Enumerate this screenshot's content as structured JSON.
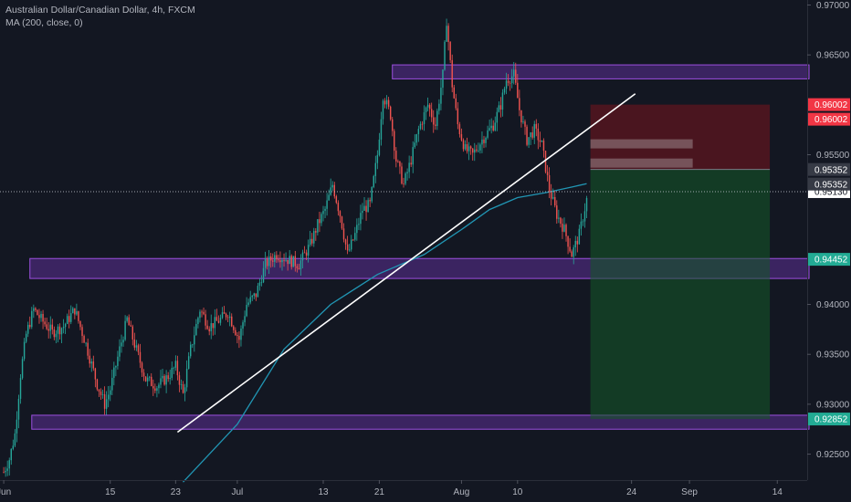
{
  "legend": {
    "title": "Australian Dollar/Canadian Dollar, 4h, FXCM",
    "indicator": "MA (200, close, 0)"
  },
  "colors": {
    "background": "#131722",
    "up_candle": "#26a69a",
    "down_candle": "#ef5350",
    "ma_line": "#2196b4",
    "zone_fill": "rgba(126, 58, 200, 0.38)",
    "zone_border": "#9c4fe0",
    "trendline": "#ffffff",
    "stop_zone": "rgba(120, 20, 30, 0.55)",
    "target_zone": "rgba(20, 90, 40, 0.55)",
    "axis_text": "#b2b5be",
    "price_red": "#f23645",
    "price_green": "#22ab94"
  },
  "chart_data": {
    "type": "candlestick",
    "symbol": "AUDCAD",
    "timeframe": "4h",
    "source": "FXCM",
    "ylim": [
      0.9224,
      0.9705
    ],
    "x_ticks": [
      {
        "label": "Jun",
        "idx": 0
      },
      {
        "label": "15",
        "idx": 57
      },
      {
        "label": "23",
        "idx": 92
      },
      {
        "label": "Jul",
        "idx": 125
      },
      {
        "label": "13",
        "idx": 171
      },
      {
        "label": "21",
        "idx": 201
      },
      {
        "label": "Aug",
        "idx": 245
      },
      {
        "label": "10",
        "idx": 275
      },
      {
        "label": "24",
        "idx": 336
      },
      {
        "label": "Sep",
        "idx": 367
      },
      {
        "label": "14",
        "idx": 414
      }
    ],
    "x_range": [
      -2,
      430
    ],
    "y_ticks": [
      "0.97000",
      "0.96500",
      "0.95500",
      "0.94000",
      "0.93500",
      "0.93000",
      "0.92500"
    ],
    "waypoints": [
      [
        0,
        0.9232
      ],
      [
        3,
        0.9245
      ],
      [
        6,
        0.927
      ],
      [
        9,
        0.933
      ],
      [
        12,
        0.937
      ],
      [
        16,
        0.9395
      ],
      [
        20,
        0.9385
      ],
      [
        26,
        0.9372
      ],
      [
        32,
        0.9378
      ],
      [
        38,
        0.9395
      ],
      [
        44,
        0.936
      ],
      [
        50,
        0.932
      ],
      [
        54,
        0.93
      ],
      [
        57,
        0.9315
      ],
      [
        62,
        0.9355
      ],
      [
        66,
        0.9385
      ],
      [
        70,
        0.936
      ],
      [
        76,
        0.9325
      ],
      [
        82,
        0.9318
      ],
      [
        88,
        0.9328
      ],
      [
        92,
        0.9338
      ],
      [
        96,
        0.931
      ],
      [
        100,
        0.9355
      ],
      [
        105,
        0.9395
      ],
      [
        110,
        0.9378
      ],
      [
        116,
        0.9385
      ],
      [
        120,
        0.9392
      ],
      [
        126,
        0.9365
      ],
      [
        130,
        0.94
      ],
      [
        135,
        0.941
      ],
      [
        140,
        0.944
      ],
      [
        146,
        0.945
      ],
      [
        152,
        0.9445
      ],
      [
        158,
        0.944
      ],
      [
        164,
        0.946
      ],
      [
        168,
        0.948
      ],
      [
        172,
        0.9495
      ],
      [
        176,
        0.952
      ],
      [
        180,
        0.949
      ],
      [
        184,
        0.945
      ],
      [
        188,
        0.947
      ],
      [
        192,
        0.9495
      ],
      [
        196,
        0.95
      ],
      [
        200,
        0.955
      ],
      [
        203,
        0.961
      ],
      [
        207,
        0.959
      ],
      [
        210,
        0.9545
      ],
      [
        214,
        0.952
      ],
      [
        218,
        0.9545
      ],
      [
        222,
        0.9575
      ],
      [
        227,
        0.96
      ],
      [
        231,
        0.958
      ],
      [
        235,
        0.963
      ],
      [
        237,
        0.9685
      ],
      [
        240,
        0.962
      ],
      [
        243,
        0.958
      ],
      [
        247,
        0.9555
      ],
      [
        251,
        0.955
      ],
      [
        256,
        0.9565
      ],
      [
        262,
        0.958
      ],
      [
        266,
        0.96
      ],
      [
        269,
        0.9625
      ],
      [
        273,
        0.963
      ],
      [
        276,
        0.9595
      ],
      [
        280,
        0.9565
      ],
      [
        284,
        0.9575
      ],
      [
        288,
        0.956
      ],
      [
        292,
        0.9515
      ],
      [
        296,
        0.949
      ],
      [
        300,
        0.9475
      ],
      [
        304,
        0.945
      ],
      [
        308,
        0.947
      ],
      [
        312,
        0.9505
      ]
    ],
    "last_close_idx": 312,
    "ma_200": [
      {
        "idx": 96,
        "v": 0.9222
      },
      {
        "idx": 125,
        "v": 0.928
      },
      {
        "idx": 150,
        "v": 0.9355
      },
      {
        "idx": 175,
        "v": 0.94
      },
      {
        "idx": 200,
        "v": 0.943
      },
      {
        "idx": 225,
        "v": 0.945
      },
      {
        "idx": 245,
        "v": 0.9475
      },
      {
        "idx": 260,
        "v": 0.9495
      },
      {
        "idx": 275,
        "v": 0.9507
      },
      {
        "idx": 290,
        "v": 0.9512
      },
      {
        "idx": 305,
        "v": 0.9518
      },
      {
        "idx": 312,
        "v": 0.9521
      }
    ],
    "zones": [
      {
        "from_idx": 208,
        "to_idx": 431,
        "top": 0.964,
        "bottom": 0.9626
      },
      {
        "from_idx": 14,
        "to_idx": 431,
        "top": 0.9446,
        "bottom": 0.9426
      },
      {
        "from_idx": 15,
        "to_idx": 431,
        "top": 0.9289,
        "bottom": 0.9275
      }
    ],
    "trendline": {
      "from": {
        "idx": 93,
        "v": 0.9272
      },
      "to": {
        "idx": 338,
        "v": 0.9611
      }
    },
    "short_position": {
      "from_idx": 314,
      "to_idx": 410,
      "stop": 0.96002,
      "entry": 0.95352,
      "target": 0.92852
    },
    "horizontal_line": 0.9513,
    "price_labels": [
      {
        "value": 0.96002,
        "text": "0.96002",
        "style": "red"
      },
      {
        "value": 0.95352,
        "text": "0.95352",
        "style": "gray"
      },
      {
        "value": 0.9513,
        "text": "0.95130",
        "style": "white"
      },
      {
        "value": 0.94452,
        "text": "0.94452",
        "style": "green"
      },
      {
        "value": 0.92852,
        "text": "0.92852",
        "style": "green"
      }
    ]
  }
}
